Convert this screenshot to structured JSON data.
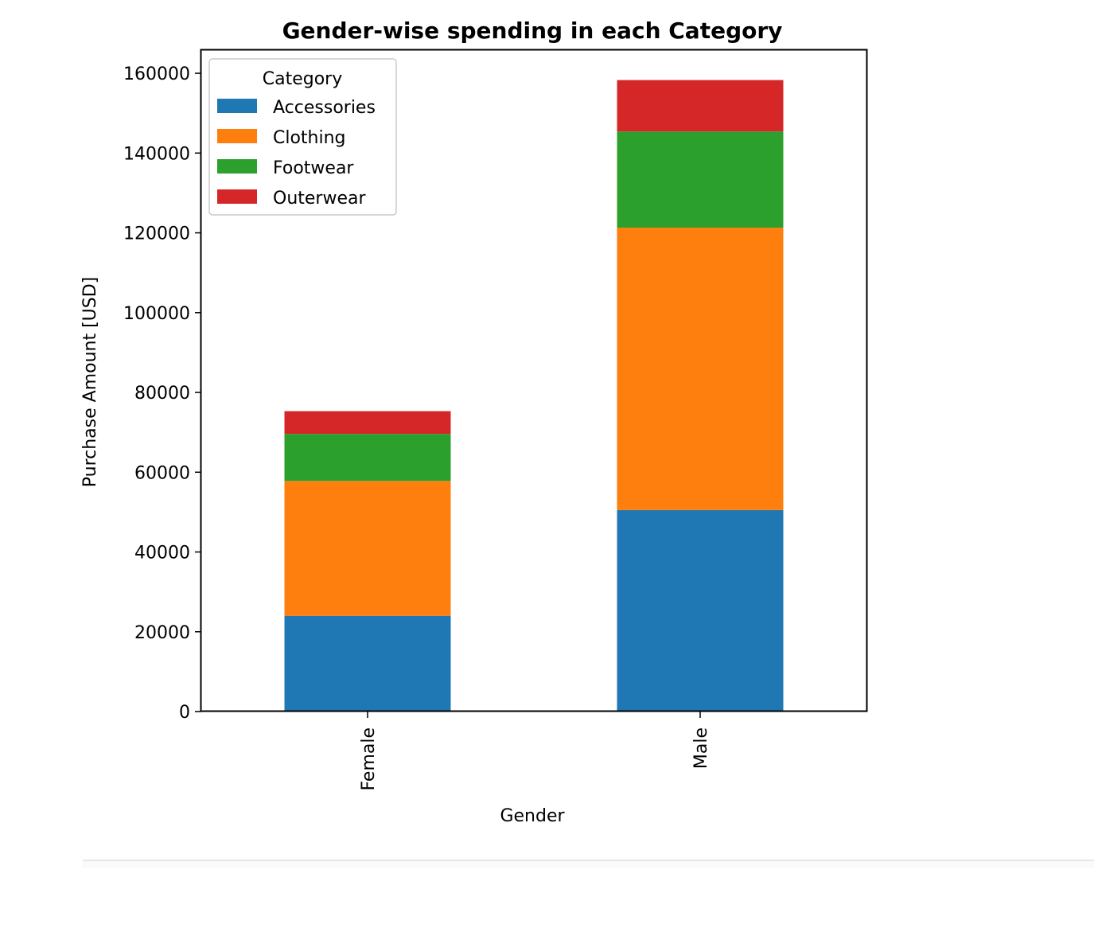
{
  "chart_data": {
    "type": "bar",
    "stacked": true,
    "title": "Gender-wise spending in each Category",
    "xlabel": "Gender",
    "ylabel": "Purchase Amount [USD]",
    "categories": [
      "Female",
      "Male"
    ],
    "series": [
      {
        "name": "Accessories",
        "color": "#1f77b4",
        "values": [
          24000,
          50500
        ]
      },
      {
        "name": "Clothing",
        "color": "#ff7f0e",
        "values": [
          33800,
          70800
        ]
      },
      {
        "name": "Footwear",
        "color": "#2ca02c",
        "values": [
          11800,
          24100
        ]
      },
      {
        "name": "Outerwear",
        "color": "#d62728",
        "values": [
          5700,
          12900
        ]
      }
    ],
    "ylim": [
      0,
      166000
    ],
    "yticks": [
      0,
      20000,
      40000,
      60000,
      80000,
      100000,
      120000,
      140000,
      160000
    ],
    "yticklabels": [
      "0",
      "20000",
      "40000",
      "60000",
      "80000",
      "100000",
      "120000",
      "140000",
      "160000"
    ],
    "legend": {
      "title": "Category",
      "position": "upper-left"
    },
    "grid": false
  }
}
